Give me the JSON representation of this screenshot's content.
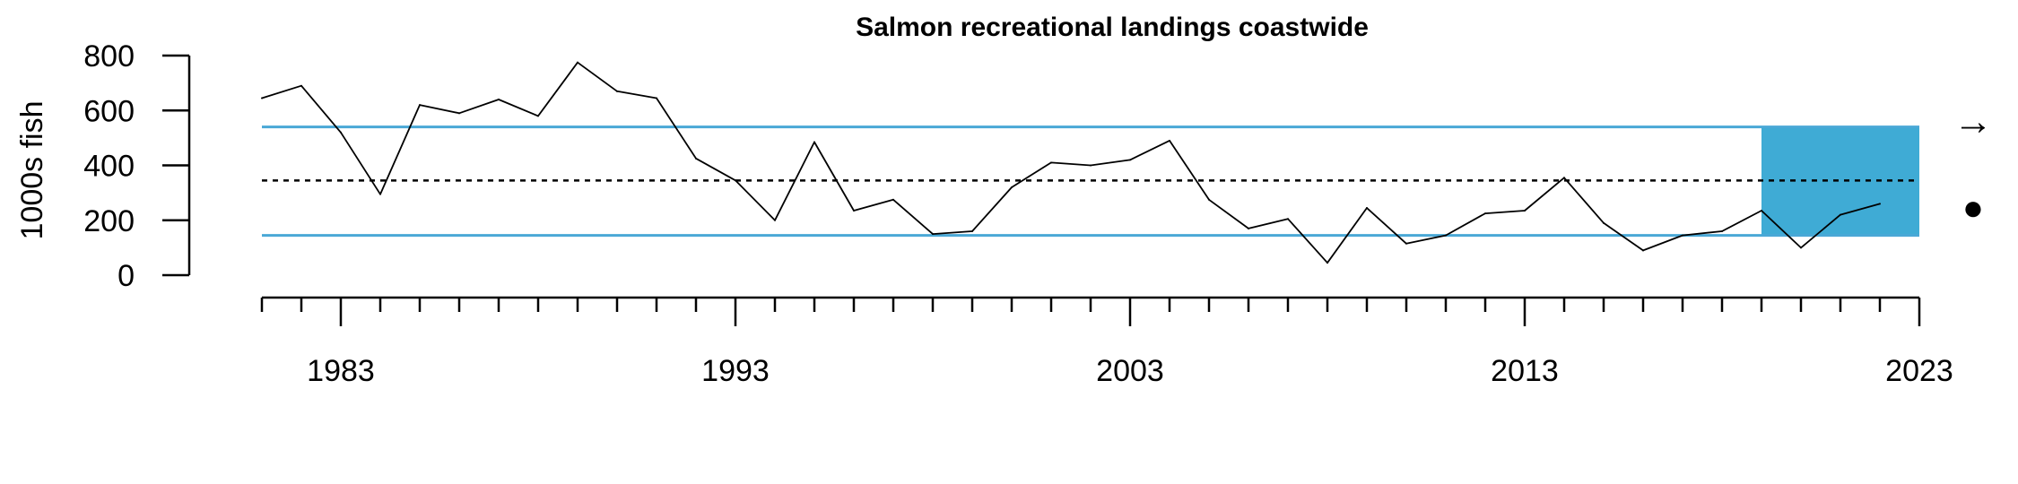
{
  "chart_data": {
    "type": "line",
    "title": "Salmon recreational landings coastwide",
    "ylabel": "1000s fish",
    "xlabel": "",
    "ylim": [
      0,
      800
    ],
    "xlim": [
      1981,
      2023
    ],
    "y_ticks": [
      "0",
      "200",
      "400",
      "600",
      "800"
    ],
    "y_tick_values": [
      0,
      200,
      400,
      600,
      800
    ],
    "x_ticks": [
      "1983",
      "1993",
      "2003",
      "2013",
      "2023"
    ],
    "x_tick_values": [
      1983,
      1993,
      2003,
      2013,
      2023
    ],
    "x": [
      1981,
      1982,
      1983,
      1984,
      1985,
      1986,
      1987,
      1988,
      1989,
      1990,
      1991,
      1992,
      1993,
      1994,
      1995,
      1996,
      1997,
      1998,
      1999,
      2000,
      2001,
      2002,
      2003,
      2004,
      2005,
      2006,
      2007,
      2008,
      2009,
      2010,
      2011,
      2012,
      2013,
      2014,
      2015,
      2016,
      2017,
      2018,
      2019,
      2020,
      2021,
      2022
    ],
    "values": [
      645,
      690,
      520,
      295,
      620,
      590,
      640,
      580,
      775,
      670,
      645,
      425,
      345,
      200,
      485,
      235,
      275,
      150,
      160,
      320,
      410,
      400,
      420,
      490,
      275,
      170,
      205,
      45,
      245,
      115,
      145,
      225,
      235,
      355,
      190,
      90,
      145,
      160,
      235,
      100,
      220,
      260
    ],
    "mean": 345,
    "upper_sd": 540,
    "lower_sd": 145,
    "highlight_range": [
      2019,
      2023
    ],
    "trend_symbol": "→",
    "mean_symbol": "●",
    "colors": {
      "line": "#000000",
      "sd_lines": "#4aa8d6",
      "highlight": "#3fabd5",
      "mean_line": "#000000"
    },
    "grid": false,
    "legend": "none"
  }
}
